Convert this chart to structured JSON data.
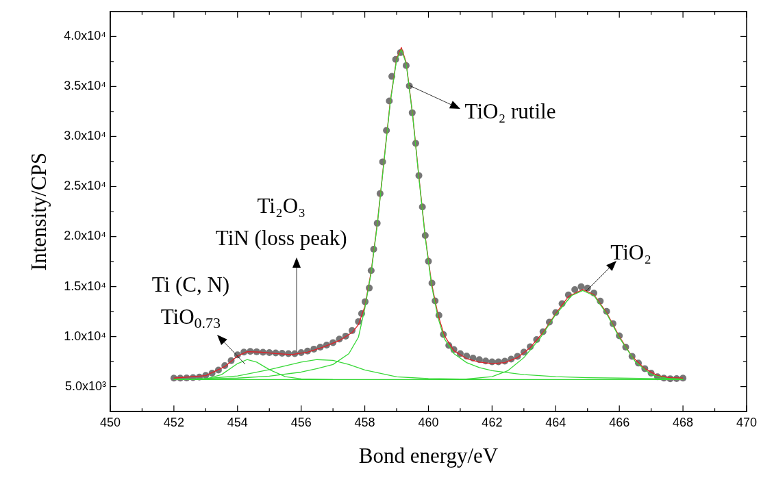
{
  "chart_data": {
    "type": "scatter",
    "xlabel": "Bond energy/eV",
    "ylabel": "Intensity/CPS",
    "xlim": [
      450,
      470
    ],
    "xticks": [
      450,
      {
        "value": 451,
        "label": null
      },
      452,
      {
        "value": 453,
        "label": null
      },
      454,
      {
        "value": 455,
        "label": null
      },
      456,
      {
        "value": 457,
        "label": null
      },
      458,
      {
        "value": 459,
        "label": null
      },
      460,
      {
        "value": 461,
        "label": null
      },
      462,
      {
        "value": 463,
        "label": null
      },
      464,
      {
        "value": 465,
        "label": null
      },
      466,
      {
        "value": 467,
        "label": null
      },
      468,
      {
        "value": 469,
        "label": null
      },
      470
    ],
    "ylim": [
      2500,
      42500
    ],
    "yticks": [
      {
        "value": 5000,
        "label": "5.0x10³"
      },
      {
        "value": 7500,
        "label": null
      },
      {
        "value": 10000,
        "label": "1.0x10⁴"
      },
      {
        "value": 12500,
        "label": null
      },
      {
        "value": 15000,
        "label": "1.5x10⁴"
      },
      {
        "value": 17500,
        "label": null
      },
      {
        "value": 20000,
        "label": "2.0x10⁴"
      },
      {
        "value": 22500,
        "label": null
      },
      {
        "value": 25000,
        "label": "2.5x10⁴"
      },
      {
        "value": 27500,
        "label": null
      },
      {
        "value": 30000,
        "label": "3.0x10⁴"
      },
      {
        "value": 32500,
        "label": null
      },
      {
        "value": 35000,
        "label": "3.5x10⁴"
      },
      {
        "value": 37500,
        "label": null
      },
      {
        "value": 40000,
        "label": "4.0x10⁴"
      }
    ],
    "series": [
      {
        "color": "#767676",
        "marker": "circle",
        "x": [
          452.0,
          452.2,
          452.4,
          452.6,
          452.8,
          453.0,
          453.2,
          453.4,
          453.6,
          453.8,
          454.0,
          454.2,
          454.4,
          454.6,
          454.8,
          455.0,
          455.2,
          455.4,
          455.6,
          455.8,
          456.0,
          456.2,
          456.4,
          456.6,
          456.8,
          457.0,
          457.2,
          457.4,
          457.6,
          457.8,
          457.9,
          458.01,
          458.14,
          458.2,
          458.28,
          458.39,
          458.48,
          458.56,
          458.68,
          458.77,
          458.85,
          458.97,
          459.12,
          459.3,
          459.4,
          459.49,
          459.6,
          459.7,
          459.81,
          459.9,
          460.0,
          460.11,
          460.21,
          460.33,
          460.47,
          460.64,
          460.8,
          461.0,
          461.2,
          461.4,
          461.6,
          461.8,
          462.0,
          462.2,
          462.4,
          462.6,
          462.8,
          463.0,
          463.2,
          463.4,
          463.6,
          463.8,
          464.0,
          464.2,
          464.4,
          464.6,
          464.8,
          465.0,
          465.2,
          465.4,
          465.6,
          465.8,
          466.0,
          466.2,
          466.4,
          466.6,
          466.8,
          467.0,
          467.2,
          467.4,
          467.6,
          467.8,
          468.0
        ],
        "values": [
          5850,
          5850,
          5870,
          5900,
          5950,
          6120,
          6350,
          6650,
          7100,
          7600,
          8170,
          8450,
          8520,
          8480,
          8440,
          8400,
          8360,
          8330,
          8300,
          8300,
          8400,
          8550,
          8750,
          8950,
          9150,
          9400,
          9750,
          10050,
          10600,
          11500,
          12300,
          13490,
          14860,
          16600,
          18730,
          21330,
          24300,
          27470,
          30610,
          33560,
          36010,
          37710,
          38390,
          37100,
          35060,
          32380,
          29320,
          26100,
          22960,
          20100,
          17530,
          15350,
          13570,
          12130,
          10210,
          9120,
          8700,
          8300,
          8050,
          7850,
          7700,
          7560,
          7480,
          7480,
          7540,
          7750,
          8030,
          8450,
          8990,
          9700,
          10490,
          11450,
          12400,
          13300,
          14170,
          14700,
          14990,
          14850,
          14360,
          13550,
          12530,
          11300,
          10080,
          8950,
          8030,
          7350,
          6800,
          6350,
          5980,
          5850,
          5790,
          5800,
          5850
        ]
      },
      {
        "type": "line",
        "color": "#e32028",
        "x": [
          452,
          453,
          453.6,
          454.0,
          454.3,
          454.7,
          455.2,
          455.7,
          456.2,
          456.7,
          457.2,
          457.6,
          457.8,
          458.0,
          458.2,
          458.4,
          458.6,
          458.8,
          459.0,
          459.15,
          459.3,
          459.5,
          459.7,
          459.9,
          460.1,
          460.3,
          460.5,
          460.8,
          461.2,
          461.6,
          462.0,
          462.4,
          462.8,
          463.2,
          463.6,
          464.0,
          464.4,
          464.85,
          465.2,
          465.6,
          466.0,
          466.4,
          466.8,
          467.2,
          467.6,
          468.0
        ],
        "values": [
          5850,
          6100,
          7000,
          8050,
          8500,
          8450,
          8300,
          8200,
          8450,
          8950,
          9600,
          10400,
          11200,
          13000,
          16500,
          21500,
          27500,
          33500,
          37800,
          38900,
          37400,
          32300,
          26000,
          20000,
          15300,
          12200,
          10100,
          8600,
          7800,
          7450,
          7300,
          7400,
          7900,
          8900,
          10400,
          12300,
          14000,
          14700,
          14200,
          12400,
          10000,
          8000,
          6800,
          6100,
          5900,
          5850
        ]
      },
      {
        "type": "line",
        "color": "#38d838",
        "x": [
          452,
          468
        ],
        "values": [
          5700,
          5700
        ]
      },
      {
        "type": "line",
        "color": "#38d838",
        "x": [
          452,
          453,
          453.5,
          454.0,
          454.3,
          454.6,
          455.0,
          455.5,
          456.0,
          457.0
        ],
        "values": [
          5700,
          5750,
          6200,
          7300,
          7700,
          7450,
          6700,
          6000,
          5780,
          5700
        ]
      },
      {
        "type": "line",
        "color": "#38d838",
        "x": [
          452,
          453,
          454,
          455,
          456,
          456.5,
          457.0,
          457.5,
          458,
          459,
          460,
          462
        ],
        "values": [
          5700,
          5800,
          6060,
          6700,
          7450,
          7700,
          7620,
          7210,
          6670,
          5980,
          5800,
          5700
        ]
      },
      {
        "type": "line",
        "color": "#38d838",
        "x": [
          452,
          454,
          455,
          456,
          456.5,
          457,
          457.5,
          457.8,
          458.0,
          458.2,
          458.4,
          458.6,
          458.8,
          459.0,
          459.15,
          459.3,
          459.5,
          459.7,
          459.9,
          460.1,
          460.3,
          460.5,
          460.8,
          461.2,
          461.6,
          462,
          463,
          464,
          465,
          466,
          468
        ],
        "values": [
          5700,
          5850,
          6050,
          6450,
          6800,
          7210,
          8300,
          9940,
          12800,
          16400,
          21400,
          27400,
          33400,
          37700,
          38700,
          37300,
          32200,
          25900,
          19900,
          15100,
          11900,
          9800,
          8300,
          7400,
          6900,
          6600,
          6200,
          6000,
          5900,
          5850,
          5750
        ]
      },
      {
        "type": "line",
        "color": "#38d838",
        "x": [
          461,
          462,
          462.5,
          463,
          463.5,
          464,
          464.5,
          464.85,
          465.2,
          465.6,
          466,
          466.5,
          467,
          467.5,
          468
        ],
        "values": [
          5700,
          6000,
          6600,
          7900,
          9800,
          12200,
          14100,
          14600,
          14100,
          12300,
          9900,
          7500,
          6200,
          5800,
          5750
        ]
      }
    ],
    "annotations": [
      {
        "text": "TiO₂ rutile",
        "x": 459.4,
        "y": 35060
      },
      {
        "text": "TiO₂",
        "x": 464.97,
        "y": 14580
      },
      {
        "text": "Ti₂O₃\nTiN (loss peak)",
        "x": 455.85,
        "y": 8580
      },
      {
        "text": "Ti (C, N)\nTiO$_{0.73}$",
        "x": 454.25,
        "y": 7270
      }
    ]
  }
}
